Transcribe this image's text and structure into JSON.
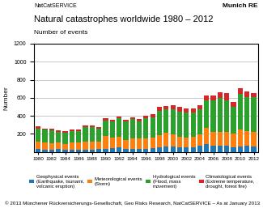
{
  "chart_data": {
    "type": "bar",
    "stacked": true,
    "title": "Natural catastrophes worldwide 1980 – 2012",
    "subtitle": "Number of events",
    "annotations": [
      "NatCatSERVICE",
      "Munich RE",
      "© 2013 Münchener Rückversicherungs-Gesellschaft, Geo Risks Research, NatCatSERVICE – As at January 2013"
    ],
    "y_label": "Number",
    "categories": [
      "1980",
      null,
      "1982",
      null,
      "1984",
      null,
      "1986",
      null,
      "1988",
      null,
      "1990",
      null,
      "1992",
      null,
      "1994",
      null,
      "1996",
      null,
      "1998",
      null,
      "2000",
      null,
      "2002",
      null,
      "2004",
      null,
      "2006",
      null,
      "2008",
      null,
      "2010",
      null,
      "2012"
    ],
    "series": [
      {
        "name": "Geophysical events\n(Earthquake, tsunami,\nvolcanic eruption)",
        "values": [
          30,
          25,
          25,
          30,
          25,
          25,
          25,
          25,
          25,
          30,
          35,
          45,
          50,
          30,
          35,
          35,
          35,
          40,
          50,
          55,
          55,
          50,
          50,
          50,
          70,
          85,
          70,
          65,
          70,
          50,
          60,
          70,
          60
        ]
      },
      {
        "name": "Meteorological events\n(Storm)",
        "values": [
          85,
          75,
          70,
          70,
          65,
          80,
          75,
          85,
          85,
          85,
          145,
          110,
          120,
          100,
          115,
          110,
          115,
          120,
          135,
          155,
          135,
          120,
          105,
          120,
          125,
          185,
          155,
          160,
          150,
          155,
          185,
          160,
          165
        ]
      },
      {
        "name": "Hydrological events\n(Flood, mass\nmovement)",
        "values": [
          145,
          145,
          145,
          120,
          125,
          125,
          130,
          165,
          165,
          145,
          170,
          185,
          200,
          210,
          215,
          195,
          225,
          225,
          265,
          260,
          280,
          275,
          280,
          270,
          275,
          305,
          350,
          370,
          355,
          290,
          400,
          375,
          380
        ]
      },
      {
        "name": "Climatological events\n(Extreme temperature,\ndrought, forest fire)",
        "values": [
          20,
          15,
          15,
          15,
          15,
          20,
          15,
          20,
          15,
          15,
          25,
          20,
          25,
          20,
          20,
          25,
          25,
          30,
          45,
          40,
          50,
          50,
          50,
          45,
          45,
          50,
          50,
          70,
          75,
          55,
          65,
          65,
          50
        ]
      }
    ],
    "ylim": [
      0,
      1200
    ],
    "yticks": [
      200,
      400,
      600,
      800,
      1000,
      1200
    ],
    "grid": true,
    "legend": "lower center"
  }
}
